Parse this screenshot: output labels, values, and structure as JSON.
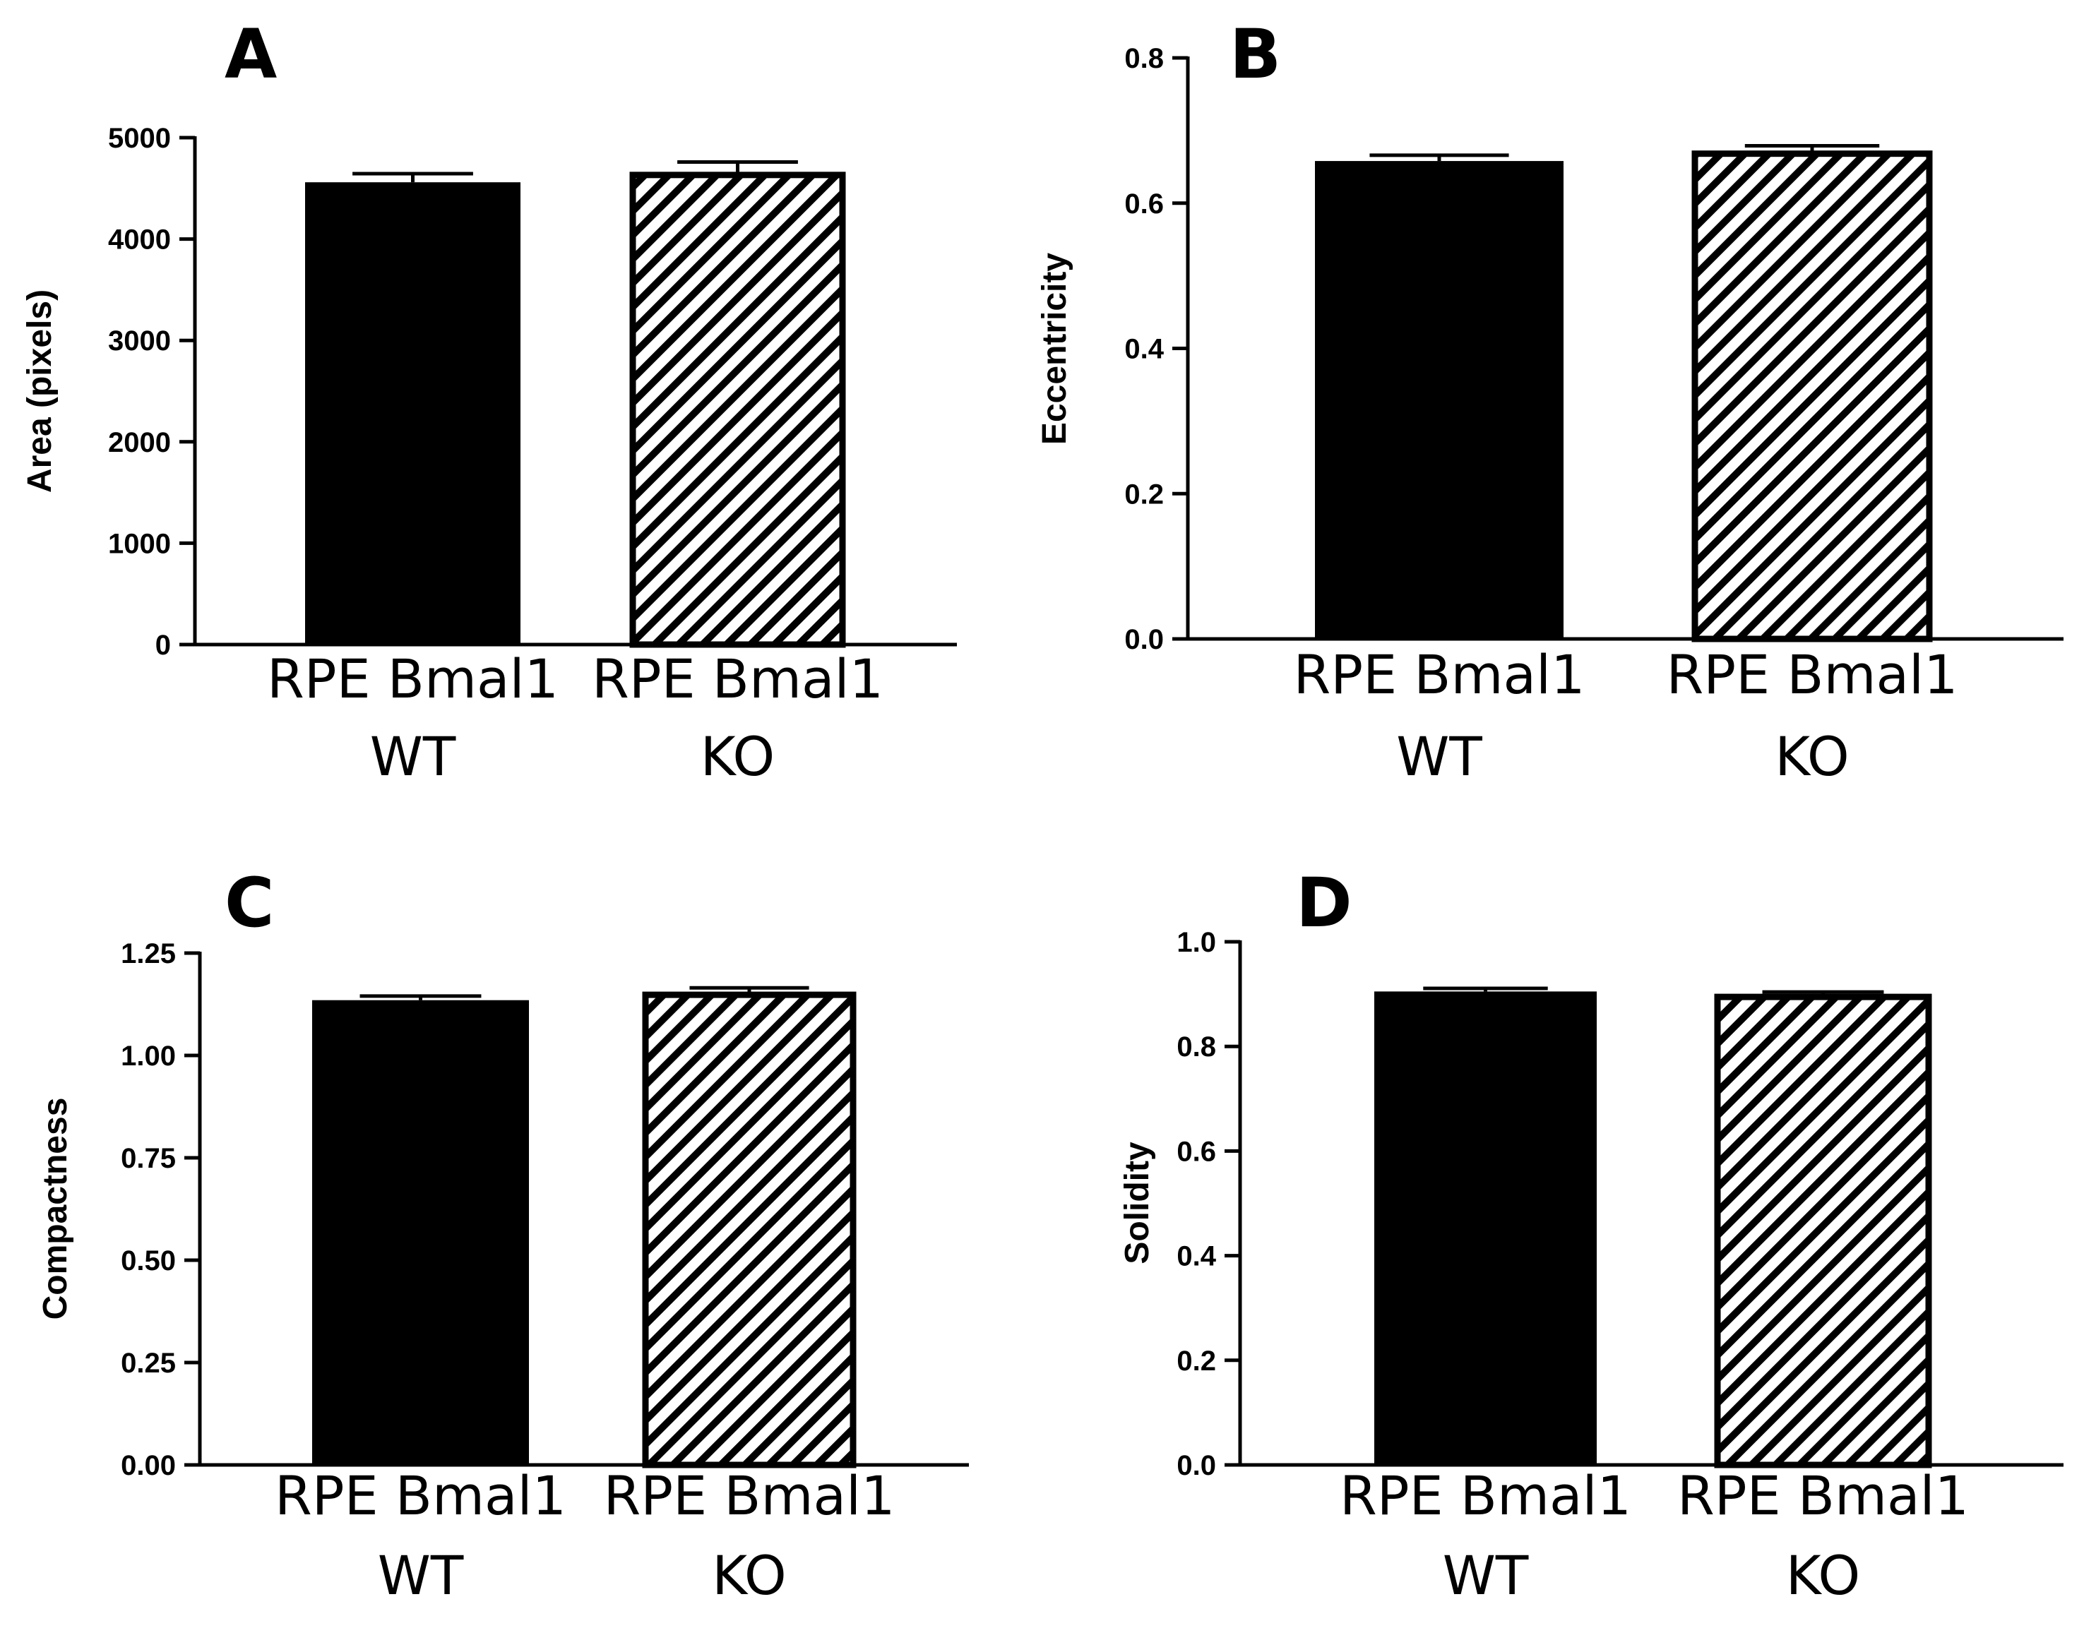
{
  "chart_data": [
    {
      "panel": "A",
      "type": "bar",
      "categories": [
        [
          "RPE Bmal1",
          "WT"
        ],
        [
          "RPE Bmal1",
          "KO"
        ]
      ],
      "values": [
        4560,
        4660
      ],
      "errors": [
        85,
        100
      ],
      "patterns": [
        "solid",
        "hatched"
      ],
      "ylabel": "Area (pixels)",
      "ylim": [
        0,
        5000
      ],
      "yticks": [
        "0",
        "1000",
        "2000",
        "3000",
        "4000",
        "5000"
      ]
    },
    {
      "panel": "B",
      "type": "bar",
      "categories": [
        [
          "RPE Bmal1",
          "WT"
        ],
        [
          "RPE Bmal1",
          "KO"
        ]
      ],
      "values": [
        0.658,
        0.672
      ],
      "errors": [
        0.008,
        0.007
      ],
      "patterns": [
        "solid",
        "hatched"
      ],
      "ylabel": "Eccentricity",
      "ylim": [
        0,
        0.8
      ],
      "yticks": [
        "0.0",
        "0.2",
        "0.4",
        "0.6",
        "0.8"
      ]
    },
    {
      "panel": "C",
      "type": "bar",
      "categories": [
        [
          "RPE Bmal1",
          "WT"
        ],
        [
          "RPE Bmal1",
          "KO"
        ]
      ],
      "values": [
        1.135,
        1.155
      ],
      "errors": [
        0.01,
        0.01
      ],
      "patterns": [
        "solid",
        "hatched"
      ],
      "ylabel": "Compactness",
      "ylim": [
        0,
        1.25
      ],
      "yticks": [
        "0.00",
        "0.25",
        "0.50",
        "0.75",
        "1.00",
        "1.25"
      ]
    },
    {
      "panel": "D",
      "type": "bar",
      "categories": [
        [
          "RPE Bmal1",
          "WT"
        ],
        [
          "RPE Bmal1",
          "KO"
        ]
      ],
      "values": [
        0.905,
        0.9
      ],
      "errors": [
        0.006,
        0.004
      ],
      "patterns": [
        "solid",
        "hatched"
      ],
      "ylabel": "Solidity",
      "ylim": [
        0,
        1.0
      ],
      "yticks": [
        "0.0",
        "0.2",
        "0.4",
        "0.6",
        "0.8",
        "1.0"
      ]
    }
  ],
  "colors": {
    "bar_fill": "#000000",
    "hatch_bg": "#ffffff",
    "axis": "#000000"
  }
}
